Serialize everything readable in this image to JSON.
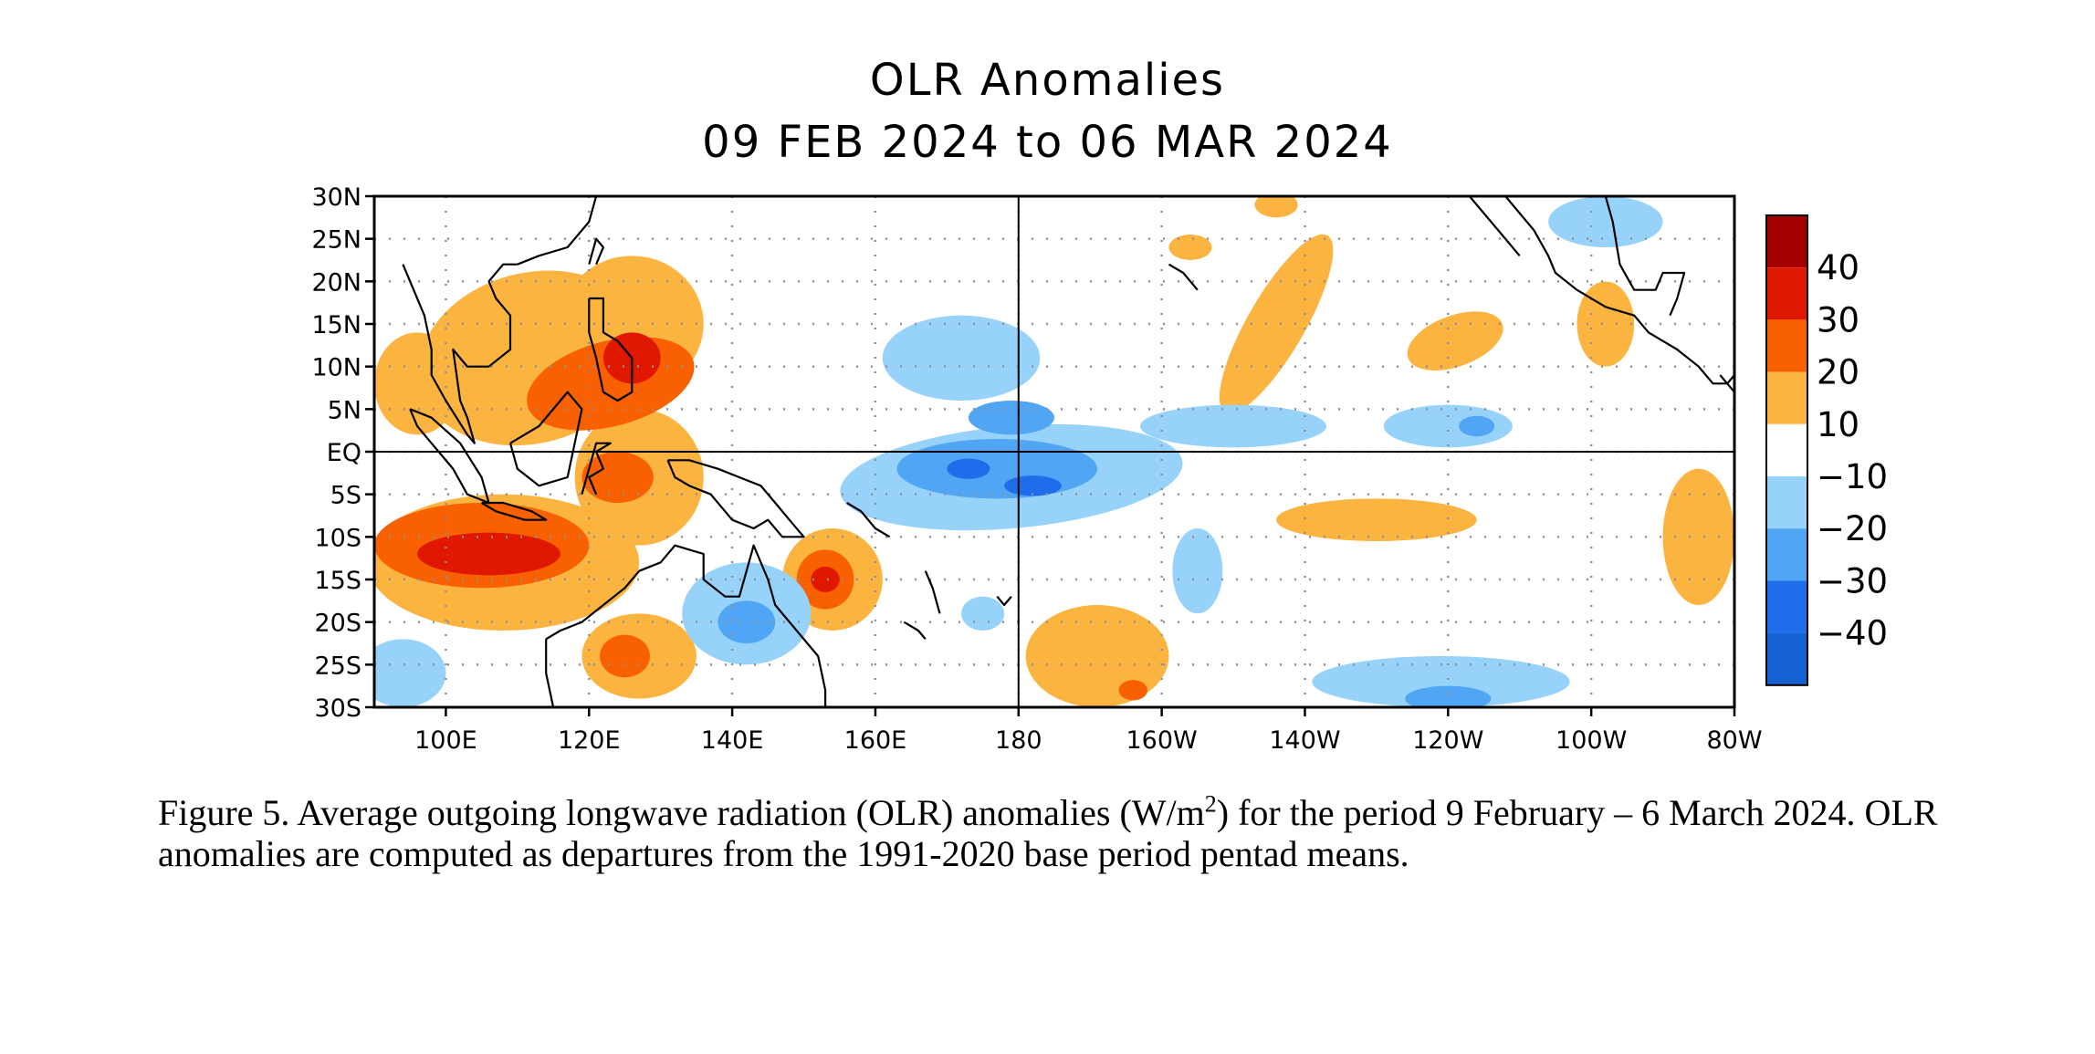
{
  "title": "OLR Anomalies",
  "subtitle": "09 FEB 2024 to 06 MAR 2024",
  "caption": {
    "part1": "Figure 5. Average outgoing longwave radiation (OLR) anomalies (W/m",
    "superscript": "2",
    "part2": ") for the period 9 February – 6 March 2024.  OLR anomalies are computed as departures from the 1991-2020 base period pentad means."
  },
  "map": {
    "lon_range": [
      90,
      280
    ],
    "lat_range": [
      -30,
      30
    ],
    "lat_ticks": [
      {
        "lat": 30,
        "label": "30N"
      },
      {
        "lat": 25,
        "label": "25N"
      },
      {
        "lat": 20,
        "label": "20N"
      },
      {
        "lat": 15,
        "label": "15N"
      },
      {
        "lat": 10,
        "label": "10N"
      },
      {
        "lat": 5,
        "label": "5N"
      },
      {
        "lat": 0,
        "label": "EQ"
      },
      {
        "lat": -5,
        "label": "5S"
      },
      {
        "lat": -10,
        "label": "10S"
      },
      {
        "lat": -15,
        "label": "15S"
      },
      {
        "lat": -20,
        "label": "20S"
      },
      {
        "lat": -25,
        "label": "25S"
      },
      {
        "lat": -30,
        "label": "30S"
      }
    ],
    "lon_ticks": [
      {
        "lon": 100,
        "label": "100E"
      },
      {
        "lon": 120,
        "label": "120E"
      },
      {
        "lon": 140,
        "label": "140E"
      },
      {
        "lon": 160,
        "label": "160E"
      },
      {
        "lon": 180,
        "label": "180"
      },
      {
        "lon": 200,
        "label": "160W"
      },
      {
        "lon": 220,
        "label": "140W"
      },
      {
        "lon": 240,
        "label": "120W"
      },
      {
        "lon": 260,
        "label": "100W"
      },
      {
        "lon": 280,
        "label": "80W"
      }
    ]
  },
  "legend": {
    "levels": [
      "40",
      "30",
      "20",
      "10",
      "−10",
      "−20",
      "−30",
      "−40"
    ],
    "colors": [
      "#a50000",
      "#e01800",
      "#f86000",
      "#fcb440",
      "#ffffff",
      "#96d2fa",
      "#50a5f5",
      "#1e6eeb",
      "#1461d2"
    ]
  },
  "colors": {
    "c10": "#fcb440",
    "c20": "#f86000",
    "c30": "#e01800",
    "c40": "#a50000",
    "n10": "#96d2fa",
    "n20": "#50a5f5",
    "n30": "#1e6eeb",
    "n40": "#1461d2"
  },
  "anomalies": [
    {
      "level": "c10",
      "lon": 112,
      "lat": 11,
      "rx": 16,
      "ry": 10,
      "rot": -15
    },
    {
      "level": "c10",
      "lon": 126,
      "lat": 15,
      "rx": 10,
      "ry": 8,
      "rot": 0
    },
    {
      "level": "c10",
      "lon": 96,
      "lat": 8,
      "rx": 6,
      "ry": 6,
      "rot": 0
    },
    {
      "level": "c10",
      "lon": 127,
      "lat": -3,
      "rx": 9,
      "ry": 8,
      "rot": 0
    },
    {
      "level": "c10",
      "lon": 108,
      "lat": -13,
      "rx": 19,
      "ry": 8,
      "rot": 0
    },
    {
      "level": "c10",
      "lon": 127,
      "lat": -24,
      "rx": 8,
      "ry": 5,
      "rot": 0
    },
    {
      "level": "c10",
      "lon": 154,
      "lat": -15,
      "rx": 7,
      "ry": 6,
      "rot": 0
    },
    {
      "level": "c10",
      "lon": 216,
      "lat": 15,
      "rx": 4,
      "ry": 12,
      "rot": 30
    },
    {
      "level": "c10",
      "lon": 230,
      "lat": -8,
      "rx": 14,
      "ry": 2.5,
      "rot": 0
    },
    {
      "level": "c10",
      "lon": 241,
      "lat": 13,
      "rx": 7,
      "ry": 3,
      "rot": -20
    },
    {
      "level": "c10",
      "lon": 262,
      "lat": 15,
      "rx": 4,
      "ry": 5,
      "rot": 0
    },
    {
      "level": "c10",
      "lon": 275,
      "lat": -10,
      "rx": 5,
      "ry": 8,
      "rot": 0
    },
    {
      "level": "c10",
      "lon": 191,
      "lat": -24,
      "rx": 10,
      "ry": 6,
      "rot": 0
    },
    {
      "level": "c10",
      "lon": 204,
      "lat": 24,
      "rx": 3,
      "ry": 1.5,
      "rot": 0
    },
    {
      "level": "c10",
      "lon": 216,
      "lat": 29,
      "rx": 3,
      "ry": 1.5,
      "rot": 0
    },
    {
      "level": "c20",
      "lon": 123,
      "lat": 8,
      "rx": 12,
      "ry": 5,
      "rot": -15
    },
    {
      "level": "c20",
      "lon": 105,
      "lat": -11,
      "rx": 15,
      "ry": 5,
      "rot": 0
    },
    {
      "level": "c20",
      "lon": 124,
      "lat": -3,
      "rx": 5,
      "ry": 3,
      "rot": 0
    },
    {
      "level": "c20",
      "lon": 125,
      "lat": -24,
      "rx": 3.5,
      "ry": 2.5,
      "rot": 0
    },
    {
      "level": "c20",
      "lon": 153,
      "lat": -15,
      "rx": 4,
      "ry": 3.5,
      "rot": 0
    },
    {
      "level": "c20",
      "lon": 196,
      "lat": -28,
      "rx": 2,
      "ry": 1.2,
      "rot": 0
    },
    {
      "level": "c30",
      "lon": 126,
      "lat": 11,
      "rx": 4,
      "ry": 3,
      "rot": 0
    },
    {
      "level": "c30",
      "lon": 106,
      "lat": -12,
      "rx": 10,
      "ry": 2.5,
      "rot": 0
    },
    {
      "level": "c30",
      "lon": 153,
      "lat": -15,
      "rx": 2,
      "ry": 1.5,
      "rot": 0
    },
    {
      "level": "n10",
      "lon": 179,
      "lat": -3,
      "rx": 24,
      "ry": 6,
      "rot": -5
    },
    {
      "level": "n10",
      "lon": 172,
      "lat": 11,
      "rx": 11,
      "ry": 5,
      "rot": 0
    },
    {
      "level": "n10",
      "lon": 142,
      "lat": -19,
      "rx": 9,
      "ry": 6,
      "rot": 0
    },
    {
      "level": "n10",
      "lon": 210,
      "lat": 3,
      "rx": 13,
      "ry": 2.5,
      "rot": 0
    },
    {
      "level": "n10",
      "lon": 240,
      "lat": 3,
      "rx": 9,
      "ry": 2.5,
      "rot": 0
    },
    {
      "level": "n10",
      "lon": 262,
      "lat": 27,
      "rx": 8,
      "ry": 3,
      "rot": 0
    },
    {
      "level": "n10",
      "lon": 239,
      "lat": -27,
      "rx": 18,
      "ry": 3,
      "rot": 0
    },
    {
      "level": "n10",
      "lon": 94,
      "lat": -26,
      "rx": 6,
      "ry": 4,
      "rot": 0
    },
    {
      "level": "n10",
      "lon": 205,
      "lat": -14,
      "rx": 3.5,
      "ry": 5,
      "rot": 0
    },
    {
      "level": "n10",
      "lon": 175,
      "lat": -19,
      "rx": 3,
      "ry": 2,
      "rot": 0
    },
    {
      "level": "n20",
      "lon": 177,
      "lat": -2,
      "rx": 14,
      "ry": 3.5,
      "rot": 0
    },
    {
      "level": "n20",
      "lon": 179,
      "lat": 4,
      "rx": 6,
      "ry": 2,
      "rot": 0
    },
    {
      "level": "n20",
      "lon": 142,
      "lat": -20,
      "rx": 4,
      "ry": 2.5,
      "rot": 0
    },
    {
      "level": "n20",
      "lon": 240,
      "lat": -29,
      "rx": 6,
      "ry": 1.5,
      "rot": 0
    },
    {
      "level": "n20",
      "lon": 244,
      "lat": 3,
      "rx": 2.5,
      "ry": 1.2,
      "rot": 0
    },
    {
      "level": "n30",
      "lon": 173,
      "lat": -2,
      "rx": 3,
      "ry": 1.2,
      "rot": 0
    },
    {
      "level": "n30",
      "lon": 182,
      "lat": -4,
      "rx": 4,
      "ry": 1.2,
      "rot": 0
    }
  ],
  "coastlines": [
    {
      "name": "indochina",
      "pts": [
        [
          94,
          22
        ],
        [
          95,
          20
        ],
        [
          97,
          16
        ],
        [
          98,
          12
        ],
        [
          98,
          9
        ],
        [
          100,
          6
        ],
        [
          103,
          2
        ],
        [
          104,
          1
        ],
        [
          103,
          4
        ],
        [
          102,
          6
        ],
        [
          101,
          12
        ],
        [
          103,
          10
        ],
        [
          106,
          10
        ],
        [
          109,
          12
        ],
        [
          109,
          16
        ],
        [
          107,
          18
        ],
        [
          106,
          20
        ],
        [
          108,
          22
        ],
        [
          110,
          22
        ]
      ]
    },
    {
      "name": "borneo",
      "pts": [
        [
          109,
          1
        ],
        [
          110,
          -2
        ],
        [
          113,
          -4
        ],
        [
          117,
          -3
        ],
        [
          118,
          1
        ],
        [
          119,
          5
        ],
        [
          117,
          7
        ],
        [
          116,
          6
        ],
        [
          113,
          3
        ],
        [
          111,
          2
        ],
        [
          109,
          1
        ]
      ]
    },
    {
      "name": "sumatra",
      "pts": [
        [
          95,
          5
        ],
        [
          98,
          4
        ],
        [
          102,
          1
        ],
        [
          105,
          -3
        ],
        [
          106,
          -6
        ],
        [
          103,
          -5
        ],
        [
          101,
          -2
        ],
        [
          98,
          1
        ],
        [
          96,
          3
        ],
        [
          95,
          5
        ]
      ]
    },
    {
      "name": "java",
      "pts": [
        [
          105,
          -6
        ],
        [
          108,
          -6
        ],
        [
          112,
          -7
        ],
        [
          114,
          -8
        ],
        [
          111,
          -8
        ],
        [
          107,
          -7
        ],
        [
          105,
          -6
        ]
      ]
    },
    {
      "name": "sulawesi",
      "pts": [
        [
          119,
          -5
        ],
        [
          120,
          -2
        ],
        [
          121,
          1
        ],
        [
          123,
          1
        ],
        [
          121,
          0
        ],
        [
          122,
          -2
        ],
        [
          120,
          -3
        ],
        [
          121,
          -5
        ]
      ]
    },
    {
      "name": "philippines",
      "pts": [
        [
          120,
          18
        ],
        [
          122,
          18
        ],
        [
          122,
          14
        ],
        [
          124,
          13
        ],
        [
          126,
          11
        ],
        [
          126,
          7
        ],
        [
          124,
          6
        ],
        [
          122,
          7
        ],
        [
          121,
          11
        ],
        [
          120,
          14
        ],
        [
          120,
          18
        ]
      ]
    },
    {
      "name": "taiwan",
      "pts": [
        [
          120,
          22
        ],
        [
          121,
          25
        ],
        [
          122,
          24
        ],
        [
          121,
          22
        ]
      ]
    },
    {
      "name": "newguinea",
      "pts": [
        [
          131,
          -1
        ],
        [
          134,
          -1
        ],
        [
          138,
          -2
        ],
        [
          141,
          -3
        ],
        [
          144,
          -4
        ],
        [
          146,
          -6
        ],
        [
          148,
          -8
        ],
        [
          150,
          -10
        ],
        [
          147,
          -10
        ],
        [
          145,
          -8
        ],
        [
          143,
          -9
        ],
        [
          140,
          -8
        ],
        [
          137,
          -5
        ],
        [
          134,
          -4
        ],
        [
          132,
          -3
        ],
        [
          131,
          -1
        ]
      ]
    },
    {
      "name": "australia",
      "pts": [
        [
          114,
          -22
        ],
        [
          114,
          -26
        ],
        [
          115,
          -30
        ],
        [
          117,
          -32
        ],
        [
          120,
          -34
        ],
        [
          125,
          -33
        ],
        [
          130,
          -32
        ],
        [
          135,
          -34
        ],
        [
          138,
          -35
        ],
        [
          140,
          -38
        ],
        [
          145,
          -38
        ],
        [
          150,
          -37
        ],
        [
          153,
          -32
        ],
        [
          153,
          -28
        ],
        [
          152,
          -24
        ],
        [
          149,
          -21
        ],
        [
          146,
          -18
        ],
        [
          145,
          -15
        ],
        [
          143,
          -11
        ],
        [
          142,
          -14
        ],
        [
          141,
          -17
        ],
        [
          139,
          -17
        ],
        [
          136,
          -15
        ],
        [
          136,
          -12
        ],
        [
          132,
          -11
        ],
        [
          130,
          -13
        ],
        [
          127,
          -14
        ],
        [
          125,
          -16
        ],
        [
          122,
          -18
        ],
        [
          119,
          -20
        ],
        [
          116,
          -21
        ],
        [
          114,
          -22
        ]
      ]
    },
    {
      "name": "china",
      "pts": [
        [
          110,
          22
        ],
        [
          113,
          23
        ],
        [
          117,
          24
        ],
        [
          120,
          27
        ],
        [
          121,
          30
        ]
      ]
    },
    {
      "name": "mexico",
      "pts": [
        [
          248,
          30
        ],
        [
          252,
          26
        ],
        [
          254,
          23
        ],
        [
          255,
          21
        ],
        [
          258,
          19
        ],
        [
          262,
          17
        ],
        [
          266,
          16
        ],
        [
          268,
          14
        ],
        [
          272,
          12
        ],
        [
          275,
          10
        ],
        [
          277,
          8
        ],
        [
          279,
          8
        ],
        [
          280,
          9
        ]
      ]
    },
    {
      "name": "baja",
      "pts": [
        [
          243,
          30
        ],
        [
          245,
          28
        ],
        [
          248,
          25
        ],
        [
          250,
          23
        ]
      ]
    },
    {
      "name": "gulf",
      "pts": [
        [
          262,
          30
        ],
        [
          263,
          27
        ],
        [
          264,
          22
        ],
        [
          266,
          19
        ],
        [
          269,
          19
        ],
        [
          270,
          21
        ],
        [
          273,
          21
        ],
        [
          272,
          18
        ],
        [
          271,
          16
        ]
      ]
    },
    {
      "name": "panama-sa",
      "pts": [
        [
          278,
          9
        ],
        [
          280,
          7
        ],
        [
          280,
          4
        ]
      ]
    },
    {
      "name": "solomons",
      "pts": [
        [
          156,
          -6
        ],
        [
          158,
          -7
        ],
        [
          160,
          -9
        ],
        [
          162,
          -10
        ]
      ]
    },
    {
      "name": "vanuatu",
      "pts": [
        [
          167,
          -14
        ],
        [
          168,
          -16
        ],
        [
          169,
          -19
        ]
      ]
    },
    {
      "name": "newcal",
      "pts": [
        [
          164,
          -20
        ],
        [
          166,
          -21
        ],
        [
          167,
          -22
        ]
      ]
    },
    {
      "name": "fiji",
      "pts": [
        [
          177,
          -17
        ],
        [
          178,
          -18
        ],
        [
          179,
          -17
        ]
      ]
    },
    {
      "name": "hawaii",
      "pts": [
        [
          201,
          22
        ],
        [
          203,
          21
        ],
        [
          204,
          20
        ],
        [
          205,
          19
        ]
      ]
    }
  ]
}
